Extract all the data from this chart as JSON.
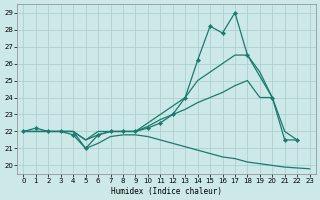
{
  "xlabel": "Humidex (Indice chaleur)",
  "bg_color": "#cce8e8",
  "grid_color": "#aacccc",
  "line_color": "#1a7a6e",
  "xlim": [
    -0.5,
    23.5
  ],
  "ylim": [
    19.5,
    29.5
  ],
  "xticks": [
    0,
    1,
    2,
    3,
    4,
    5,
    6,
    7,
    8,
    9,
    10,
    11,
    12,
    13,
    14,
    15,
    16,
    17,
    18,
    19,
    20,
    21,
    22,
    23
  ],
  "yticks": [
    20,
    21,
    22,
    23,
    24,
    25,
    26,
    27,
    28,
    29
  ],
  "series": [
    {
      "x": [
        0,
        1,
        2,
        3,
        4,
        5,
        6,
        7,
        8,
        9,
        10,
        11,
        12,
        13,
        14,
        15,
        16,
        17,
        18,
        20,
        21,
        22
      ],
      "y": [
        22,
        22.2,
        22,
        22,
        21.8,
        21,
        21.8,
        22,
        22,
        22,
        22.2,
        22.5,
        23,
        24,
        26.2,
        28.2,
        27.8,
        29,
        26.5,
        24,
        21.5,
        21.5
      ],
      "marker": true
    },
    {
      "x": [
        0,
        1,
        2,
        3,
        4,
        5,
        6,
        7,
        8,
        9,
        10,
        11,
        12,
        13,
        14,
        15,
        16,
        17,
        18,
        19,
        20
      ],
      "y": [
        22,
        22,
        22,
        22,
        22,
        21.5,
        22,
        22,
        22,
        22,
        22.5,
        23,
        23.5,
        24,
        25,
        25.5,
        26,
        26.5,
        26.5,
        25.5,
        24
      ],
      "marker": false
    },
    {
      "x": [
        0,
        1,
        2,
        3,
        4,
        5,
        6,
        7,
        8,
        9,
        10,
        11,
        12,
        13,
        14,
        15,
        16,
        17,
        18,
        19,
        20,
        21,
        22
      ],
      "y": [
        22,
        22,
        22,
        22,
        22,
        21.5,
        21.8,
        22,
        22,
        22,
        22.3,
        22.7,
        23,
        23.3,
        23.7,
        24,
        24.3,
        24.7,
        25,
        24,
        24,
        22,
        21.5
      ],
      "marker": false
    },
    {
      "x": [
        0,
        1,
        2,
        3,
        4,
        5,
        6,
        7,
        8,
        9,
        10,
        11,
        12,
        13,
        14,
        15,
        16,
        17,
        18,
        19,
        20,
        21,
        22,
        23
      ],
      "y": [
        22,
        22,
        22,
        22,
        22,
        21,
        21.3,
        21.7,
        21.8,
        21.8,
        21.7,
        21.5,
        21.3,
        21.1,
        20.9,
        20.7,
        20.5,
        20.4,
        20.2,
        20.1,
        20,
        19.9,
        19.85,
        19.8
      ],
      "marker": false
    }
  ]
}
